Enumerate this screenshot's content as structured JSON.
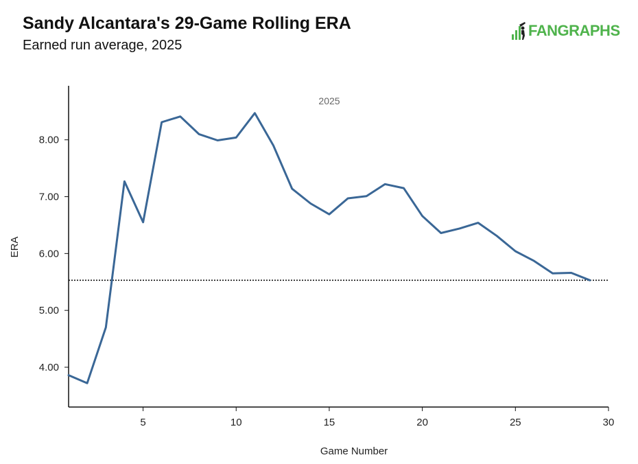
{
  "header": {
    "title": "Sandy Alcantara's 29-Game Rolling ERA",
    "subtitle": "Earned run average, 2025",
    "logo_text": "FANGRAPHS"
  },
  "colors": {
    "line": "#3a6796",
    "axis": "#111111",
    "logo": "#4fb34c"
  },
  "chart_data": {
    "type": "line",
    "title": "Sandy Alcantara's 29-Game Rolling ERA",
    "subtitle": "Earned run average, 2025",
    "panel_label": "2025",
    "xlabel": "Game Number",
    "ylabel": "ERA",
    "xlim": [
      1,
      30
    ],
    "ylim": [
      3.3,
      8.95
    ],
    "x_ticks": [
      5,
      10,
      15,
      20,
      25,
      30
    ],
    "x_tick_labels": [
      "5",
      "10",
      "15",
      "20",
      "25",
      "30"
    ],
    "y_ticks": [
      4,
      5,
      6,
      7,
      8
    ],
    "y_tick_labels": [
      "4.00",
      "5.00",
      "6.00",
      "7.00",
      "8.00"
    ],
    "grid": false,
    "reference_line": {
      "y": 5.53,
      "style": "dotted"
    },
    "series": [
      {
        "x": [
          1,
          2,
          3,
          4,
          5,
          6,
          7,
          8,
          9,
          10,
          11,
          12,
          13,
          14,
          15,
          16,
          17,
          18,
          19,
          20,
          21,
          22,
          23,
          24,
          25,
          26,
          27,
          28,
          29
        ],
        "values": [
          3.86,
          3.72,
          4.7,
          7.27,
          6.55,
          8.31,
          8.41,
          8.1,
          7.99,
          8.04,
          8.47,
          7.9,
          7.14,
          6.88,
          6.69,
          6.97,
          7.01,
          7.22,
          7.15,
          6.66,
          6.36,
          6.44,
          6.54,
          6.31,
          6.04,
          5.87,
          5.65,
          5.66,
          5.53
        ]
      }
    ]
  }
}
